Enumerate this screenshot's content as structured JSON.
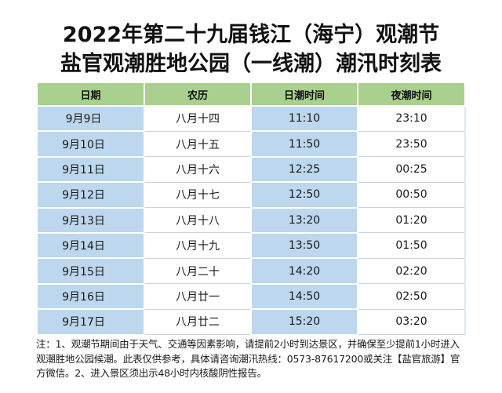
{
  "title": {
    "line1": "2022年第二十九届钱江（海宁）观潮节",
    "line2": "盐官观潮胜地公园（一线潮）潮汛时刻表"
  },
  "table": {
    "headers": [
      "日期",
      "农历",
      "日潮时间",
      "夜潮时间"
    ],
    "rows": [
      {
        "date": "9月9日",
        "lunar": "八月十四",
        "day": "11:10",
        "night": "23:10"
      },
      {
        "date": "9月10日",
        "lunar": "八月十五",
        "day": "11:50",
        "night": "23:50"
      },
      {
        "date": "9月11日",
        "lunar": "八月十六",
        "day": "12:25",
        "night": "00:25"
      },
      {
        "date": "9月12日",
        "lunar": "八月十七",
        "day": "12:50",
        "night": "00:50"
      },
      {
        "date": "9月13日",
        "lunar": "八月十八",
        "day": "13:20",
        "night": "01:20"
      },
      {
        "date": "9月14日",
        "lunar": "八月十九",
        "day": "13:50",
        "night": "01:50"
      },
      {
        "date": "9月15日",
        "lunar": "八月二十",
        "day": "14:20",
        "night": "02:20"
      },
      {
        "date": "9月16日",
        "lunar": "八月廿一",
        "day": "14:50",
        "night": "02:50"
      },
      {
        "date": "9月17日",
        "lunar": "八月廿二",
        "day": "15:20",
        "night": "03:20"
      }
    ]
  },
  "note": "注：1、观潮节期间由于天气、交通等因素影响，请提前2小时到达景区，并确保至少提前1小时进入观潮胜地公园候潮。此表仅供参考，具体请咨询潮汛热线：0573-87617200或关注【盐官旅游】官方微信。2、进入景区须出示48小时内核酸阴性报告。",
  "colors": {
    "header_green": "#a9d08e",
    "column_blue": "#bdd7ee"
  }
}
